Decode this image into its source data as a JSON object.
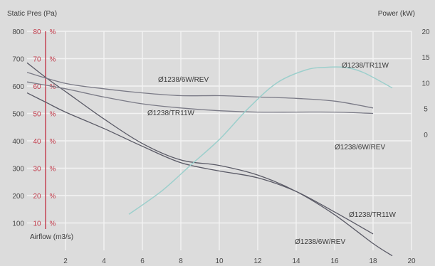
{
  "chart_data": {
    "type": "line",
    "title": "",
    "labels": {
      "static_pres": "Static Pres (Pa)",
      "power": "Power (kW)",
      "airflow": "Airflow (m3/s)"
    },
    "xlim": [
      0,
      20
    ],
    "x_ticks": [
      2,
      4,
      6,
      8,
      10,
      12,
      14,
      16,
      18,
      20
    ],
    "y_left_ticks": [
      "800",
      "700",
      "600",
      "500",
      "400",
      "300",
      "200",
      "100"
    ],
    "y_left_values": [
      800,
      700,
      600,
      500,
      400,
      300,
      200,
      100
    ],
    "efficiency_ticks": [
      "80",
      "70",
      "60",
      "50",
      "40",
      "30",
      "20",
      "10"
    ],
    "efficiency_unit": "%",
    "y_right_ticks": [
      "20",
      "15",
      "10",
      "5",
      "0"
    ],
    "y_right_values": [
      20,
      15,
      10,
      5,
      0
    ],
    "ylim_left": [
      0,
      800
    ],
    "ylim_right": [
      -22.5,
      20
    ],
    "grid": true,
    "series": [
      {
        "name": "Ø1238/6W/REV",
        "kind": "static_pressure",
        "axis": "left",
        "x": [
          0,
          1,
          2,
          4,
          6,
          8,
          10,
          12,
          14,
          16,
          18,
          19
        ],
        "y": [
          685,
          630,
          580,
          480,
          390,
          330,
          310,
          275,
          215,
          130,
          25,
          -20
        ]
      },
      {
        "name": "Ø1238/TR11W",
        "kind": "static_pressure",
        "axis": "left",
        "x": [
          0,
          1,
          2,
          4,
          6,
          8,
          10,
          12,
          14,
          16,
          18
        ],
        "y": [
          575,
          540,
          505,
          445,
          380,
          320,
          290,
          265,
          215,
          140,
          60
        ]
      },
      {
        "name": "Ø1238/6W/REV",
        "kind": "efficiency",
        "axis": "left",
        "x": [
          0,
          2,
          4,
          6,
          8,
          10,
          12,
          14,
          16,
          18
        ],
        "y": [
          650,
          610,
          590,
          575,
          565,
          565,
          560,
          555,
          545,
          520
        ]
      },
      {
        "name": "Ø1238/TR11W",
        "kind": "efficiency",
        "axis": "left",
        "x": [
          0,
          2,
          4,
          6,
          8,
          10,
          12,
          14,
          16,
          18
        ],
        "y": [
          615,
          590,
          560,
          535,
          520,
          510,
          505,
          505,
          505,
          500
        ]
      },
      {
        "name": "Ø1238/TR11W",
        "kind": "power",
        "axis": "right",
        "x": [
          5.3,
          7,
          8.5,
          10,
          11.5,
          13,
          14.5,
          15.5,
          16.5,
          17.5,
          19
        ],
        "y": [
          -15.5,
          -11,
          -6,
          -1,
          5,
          10,
          12.5,
          13,
          13,
          12,
          9
        ]
      }
    ],
    "annotations": [
      {
        "text": "Ø1238/6W/REV"
      },
      {
        "text": "Ø1238/TR11W"
      },
      {
        "text": "Ø1238/TR11W"
      },
      {
        "text": "Ø1238/6W/REV"
      },
      {
        "text": "Ø1238/TR11W"
      },
      {
        "text": "Ø1238/6W/REV"
      }
    ]
  }
}
